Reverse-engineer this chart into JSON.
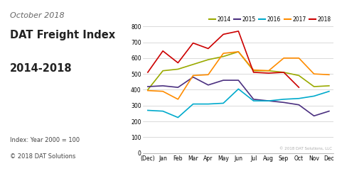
{
  "title_line1": "October 2018",
  "title_line2": "DAT Freight Index",
  "title_line3": "2014-2018",
  "subtitle": "Index: Year 2000 = 100",
  "copyright": "© 2018 DAT Solutions",
  "watermark": "© 2018 DAT Solutions, LLC",
  "bg_color": "#c8e4ef",
  "plot_bg_color": "#ffffff",
  "fig_bg_color": "#ffffff",
  "x_labels": [
    "(Dec)",
    "Jan",
    "Feb",
    "Mar",
    "Apr",
    "May",
    "Jun",
    "Jul",
    "Aug",
    "Sep",
    "Oct",
    "Nov",
    "Dec"
  ],
  "ylim": [
    0,
    800
  ],
  "yticks": [
    0,
    100,
    200,
    300,
    400,
    500,
    600,
    700,
    800
  ],
  "series": {
    "2014": {
      "color": "#9aaa00",
      "values": [
        400,
        520,
        530,
        560,
        590,
        610,
        640,
        520,
        520,
        510,
        490,
        420,
        425
      ]
    },
    "2015": {
      "color": "#4B3080",
      "values": [
        420,
        425,
        415,
        480,
        430,
        460,
        460,
        340,
        330,
        320,
        305,
        235,
        265
      ]
    },
    "2016": {
      "color": "#00AACC",
      "values": [
        270,
        265,
        225,
        310,
        310,
        315,
        405,
        330,
        330,
        340,
        345,
        360,
        390
      ]
    },
    "2017": {
      "color": "#FF8C00",
      "values": [
        395,
        390,
        340,
        490,
        495,
        630,
        640,
        525,
        520,
        600,
        600,
        500,
        495
      ]
    },
    "2018": {
      "color": "#CC0000",
      "values": [
        510,
        645,
        570,
        695,
        660,
        750,
        770,
        510,
        505,
        510,
        415,
        null,
        null
      ]
    }
  }
}
